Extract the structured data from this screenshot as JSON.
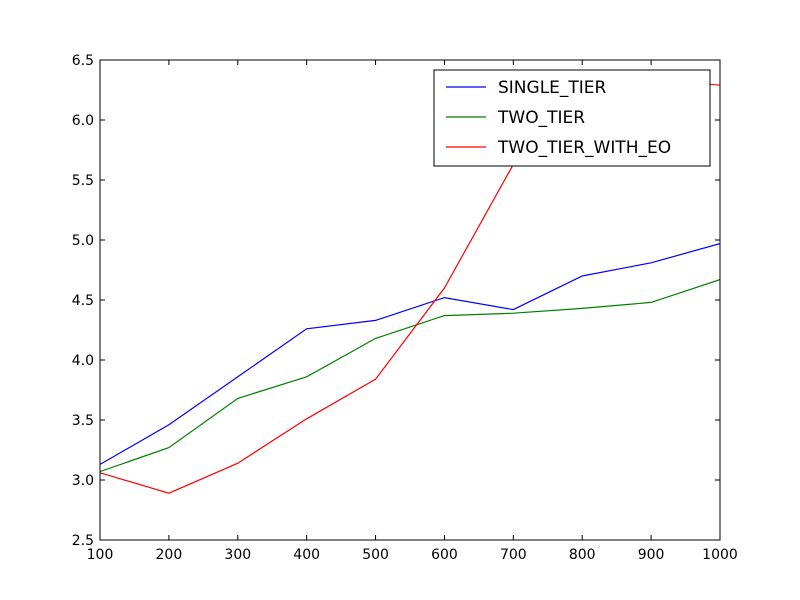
{
  "chart_data": {
    "type": "line",
    "title": "",
    "xlabel": "",
    "ylabel": "",
    "xlim": [
      100,
      1000
    ],
    "ylim": [
      2.5,
      6.5
    ],
    "x": [
      100,
      200,
      300,
      400,
      500,
      600,
      700,
      800,
      900,
      1000
    ],
    "xticks": [
      "100",
      "200",
      "300",
      "400",
      "500",
      "600",
      "700",
      "800",
      "900",
      "1000"
    ],
    "yticks": [
      "2.5",
      "3.0",
      "3.5",
      "4.0",
      "4.5",
      "5.0",
      "5.5",
      "6.0",
      "6.5"
    ],
    "grid": false,
    "legend_position": "top-right",
    "series": [
      {
        "name": "SINGLE_TIER",
        "color": "#0000ff",
        "values": [
          3.13,
          3.46,
          3.86,
          4.26,
          4.33,
          4.52,
          4.42,
          4.7,
          4.81,
          4.97
        ]
      },
      {
        "name": "TWO_TIER",
        "color": "#008000",
        "values": [
          3.07,
          3.27,
          3.68,
          3.86,
          4.18,
          4.37,
          4.39,
          4.43,
          4.48,
          4.67
        ]
      },
      {
        "name": "TWO_TIER_WITH_EO",
        "color": "#ff0000",
        "values": [
          3.06,
          2.89,
          3.14,
          3.51,
          3.84,
          4.6,
          5.63,
          6.12,
          6.34,
          6.29
        ]
      }
    ]
  }
}
